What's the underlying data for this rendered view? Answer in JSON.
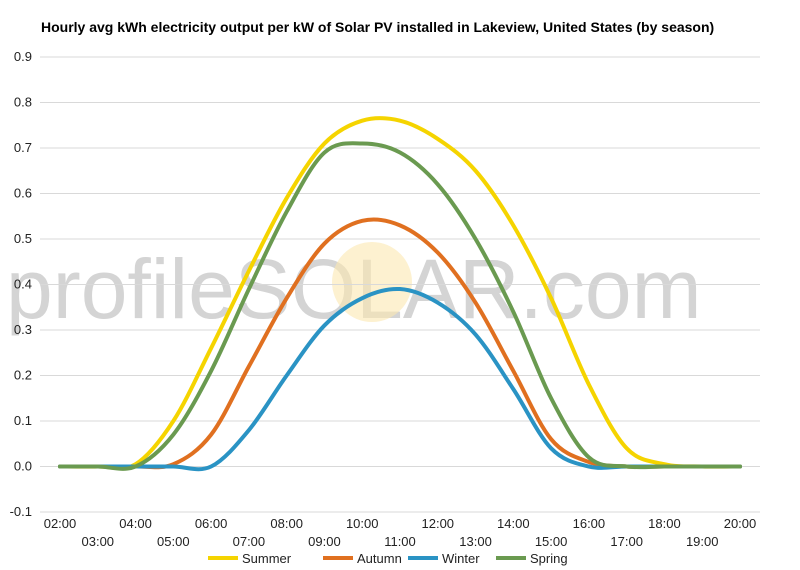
{
  "chart_data": {
    "type": "line",
    "title": "Hourly avg kWh electricity output per kW of Solar PV installed in Lakeview, United States (by season)",
    "xlabel": "",
    "ylabel": "",
    "ylim": [
      -0.1,
      0.9
    ],
    "yticks": [
      "-0.1",
      "0.0",
      "0.1",
      "0.2",
      "0.3",
      "0.4",
      "0.5",
      "0.6",
      "0.7",
      "0.8",
      "0.9"
    ],
    "x": [
      "02:00",
      "03:00",
      "04:00",
      "05:00",
      "06:00",
      "07:00",
      "08:00",
      "09:00",
      "10:00",
      "11:00",
      "12:00",
      "13:00",
      "14:00",
      "15:00",
      "16:00",
      "17:00",
      "18:00",
      "19:00",
      "20:00"
    ],
    "grid": true,
    "legend": "bottom",
    "series": [
      {
        "name": "Summer",
        "color": "#f5d400",
        "values": [
          0,
          0,
          0.005,
          0.1,
          0.26,
          0.43,
          0.59,
          0.71,
          0.76,
          0.76,
          0.72,
          0.65,
          0.53,
          0.37,
          0.18,
          0.04,
          0.005,
          0,
          0
        ]
      },
      {
        "name": "Autumn",
        "color": "#e07020",
        "values": [
          0,
          0,
          0,
          0.005,
          0.07,
          0.22,
          0.37,
          0.49,
          0.54,
          0.53,
          0.47,
          0.36,
          0.21,
          0.06,
          0.01,
          0,
          0,
          0,
          0
        ]
      },
      {
        "name": "Winter",
        "color": "#2a93c4",
        "values": [
          0,
          0,
          0,
          0,
          0,
          0.08,
          0.2,
          0.31,
          0.37,
          0.39,
          0.36,
          0.29,
          0.17,
          0.04,
          0,
          0,
          0,
          0,
          0
        ]
      },
      {
        "name": "Spring",
        "color": "#6a9a50",
        "values": [
          0,
          0,
          0,
          0.07,
          0.21,
          0.39,
          0.56,
          0.69,
          0.71,
          0.69,
          0.62,
          0.5,
          0.34,
          0.15,
          0.02,
          0,
          0,
          0,
          0
        ]
      }
    ],
    "watermark": "profileSOLAR.com"
  }
}
